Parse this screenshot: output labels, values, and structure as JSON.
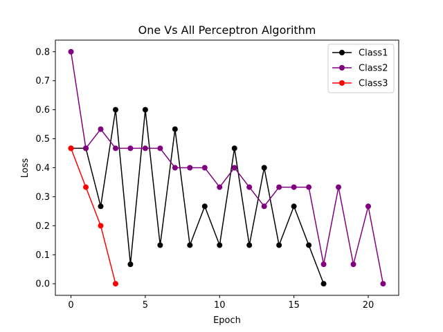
{
  "chart_data": {
    "type": "line",
    "title": "One Vs All Perceptron Algorithm",
    "xlabel": "Epoch",
    "ylabel": "Loss",
    "xlim": [
      -1.05,
      22.05
    ],
    "ylim": [
      -0.04,
      0.84
    ],
    "xticks": [
      0,
      5,
      10,
      15,
      20
    ],
    "xtick_labels": [
      "0",
      "5",
      "10",
      "15",
      "20"
    ],
    "yticks": [
      0.0,
      0.1,
      0.2,
      0.3,
      0.4,
      0.5,
      0.6,
      0.7,
      0.8
    ],
    "ytick_labels": [
      "0.0",
      "0.1",
      "0.2",
      "0.3",
      "0.4",
      "0.5",
      "0.6",
      "0.7",
      "0.8"
    ],
    "grid": false,
    "legend": "top-right",
    "series": [
      {
        "name": "Class1",
        "color": "#000000",
        "x": [
          0,
          1,
          2,
          3,
          4,
          5,
          6,
          7,
          8,
          9,
          10,
          11,
          12,
          13,
          14,
          15,
          16,
          17
        ],
        "values": [
          0.467,
          0.467,
          0.267,
          0.6,
          0.067,
          0.6,
          0.133,
          0.533,
          0.133,
          0.267,
          0.133,
          0.467,
          0.133,
          0.4,
          0.133,
          0.267,
          0.133,
          0.0
        ]
      },
      {
        "name": "Class2",
        "color": "#800080",
        "x": [
          0,
          1,
          2,
          3,
          4,
          5,
          6,
          7,
          8,
          9,
          10,
          11,
          12,
          13,
          14,
          15,
          16,
          17,
          18,
          19,
          20,
          21
        ],
        "values": [
          0.8,
          0.467,
          0.533,
          0.467,
          0.467,
          0.467,
          0.467,
          0.4,
          0.4,
          0.4,
          0.333,
          0.4,
          0.333,
          0.267,
          0.333,
          0.333,
          0.333,
          0.067,
          0.333,
          0.067,
          0.267,
          0.0
        ]
      },
      {
        "name": "Class3",
        "color": "#ff0000",
        "x": [
          0,
          1,
          2,
          3
        ],
        "values": [
          0.467,
          0.333,
          0.2,
          0.0
        ]
      }
    ]
  }
}
